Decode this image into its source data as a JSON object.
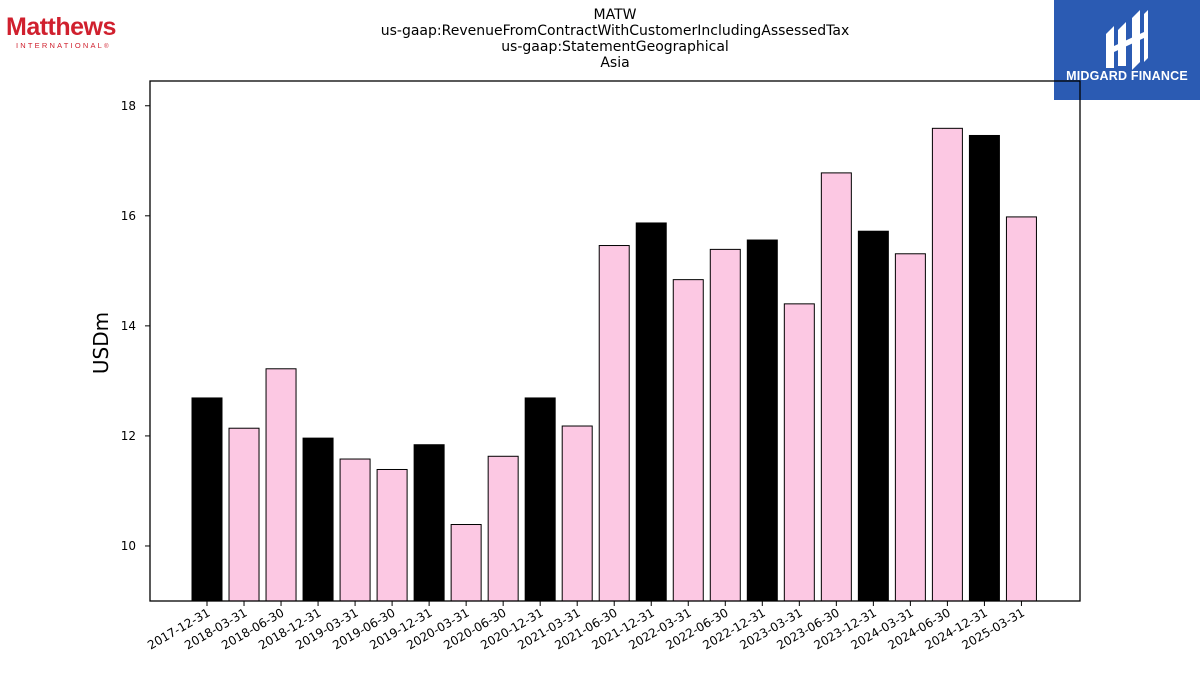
{
  "header": {
    "title_lines": [
      "MATW",
      "us-gaap:RevenueFromContractWithCustomerIncludingAssessedTax",
      "us-gaap:StatementGeographical",
      "Asia"
    ]
  },
  "logos": {
    "left": {
      "name": "Matthews",
      "sub": "INTERNATIONAL",
      "mark": "®",
      "color": "#d0202e"
    },
    "right": {
      "name": "MIDGARD FINANCE",
      "background": "#2b5bb3"
    }
  },
  "chart_data": {
    "type": "bar",
    "title": "MATW\nus-gaap:RevenueFromContractWithCustomerIncludingAssessedTax\nus-gaap:StatementGeographical\nAsia",
    "xlabel": "",
    "ylabel": "USDm",
    "ylim": [
      9.0,
      18.45
    ],
    "yticks": [
      10,
      12,
      14,
      16,
      18
    ],
    "grid": false,
    "legend": "none",
    "categories": [
      "2017-12-31",
      "2018-03-31",
      "2018-06-30",
      "2018-12-31",
      "2019-03-31",
      "2019-06-30",
      "2019-12-31",
      "2020-03-31",
      "2020-06-30",
      "2020-12-31",
      "2021-03-31",
      "2021-06-30",
      "2021-12-31",
      "2022-03-31",
      "2022-06-30",
      "2022-12-31",
      "2023-03-31",
      "2023-06-30",
      "2023-12-31",
      "2024-03-31",
      "2024-06-30",
      "2024-12-31",
      "2025-03-31"
    ],
    "values": [
      12.69,
      12.14,
      13.22,
      11.96,
      11.58,
      11.39,
      11.84,
      10.39,
      11.63,
      12.69,
      12.18,
      15.46,
      15.87,
      14.84,
      15.39,
      15.56,
      14.4,
      16.78,
      15.72,
      15.31,
      17.59,
      17.46,
      15.98
    ],
    "colors": [
      "#000000",
      "#fcc8e3",
      "#fcc8e3",
      "#000000",
      "#fcc8e3",
      "#fcc8e3",
      "#000000",
      "#fcc8e3",
      "#fcc8e3",
      "#000000",
      "#fcc8e3",
      "#fcc8e3",
      "#000000",
      "#fcc8e3",
      "#fcc8e3",
      "#000000",
      "#fcc8e3",
      "#fcc8e3",
      "#000000",
      "#fcc8e3",
      "#fcc8e3",
      "#000000",
      "#fcc8e3"
    ],
    "edge_color": "#000000"
  }
}
